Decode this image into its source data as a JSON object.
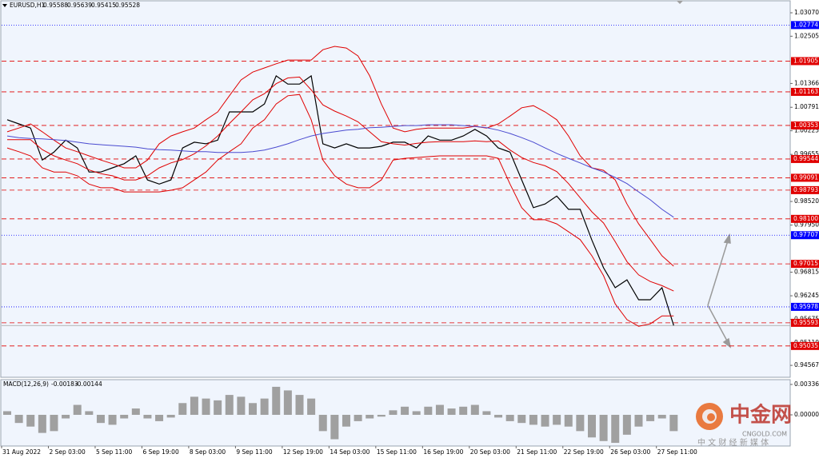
{
  "chart_data": [
    {
      "type": "line",
      "symbol": "EURUSD,H1",
      "ohlc": [
        0.95588,
        0.95639,
        0.95415,
        0.95528
      ],
      "categories": [
        "31 Aug 2022",
        null,
        null,
        null,
        "2 Sep 03:00",
        null,
        null,
        null,
        "5 Sep 11:00",
        null,
        null,
        null,
        "6 Sep 19:00",
        null,
        null,
        null,
        "8 Sep 03:00",
        null,
        null,
        null,
        "9 Sep 11:00",
        null,
        null,
        null,
        "12 Sep 19:00",
        null,
        null,
        null,
        "14 Sep 03:00",
        null,
        null,
        null,
        "15 Sep 11:00",
        null,
        null,
        null,
        "16 Sep 19:00",
        null,
        null,
        null,
        "20 Sep 03:00",
        null,
        null,
        null,
        "21 Sep 11:00",
        null,
        null,
        null,
        "22 Sep 19:00",
        null,
        null,
        null,
        "26 Sep 03:00",
        null,
        null,
        null,
        "27 Sep 11:00",
        null
      ],
      "series": [
        {
          "color": "#000000",
          "values": [
            1.0049,
            1.0039,
            1.0029,
            0.9952,
            0.9971,
            1.0,
            0.9981,
            0.9923,
            0.9923,
            0.9933,
            0.9943,
            0.9962,
            0.9904,
            0.9894,
            0.9904,
            0.9981,
            0.9995,
            0.9991,
            1.0,
            1.0068,
            1.0068,
            1.0068,
            1.0087,
            1.0155,
            1.0135,
            1.0135,
            1.0155,
            0.9991,
            0.9981,
            0.9991,
            0.9981,
            0.9981,
            0.9985,
            0.9995,
            0.9995,
            0.9981,
            1.001,
            1.0,
            1.0,
            1.001,
            1.0026,
            1.001,
            0.9981,
            0.9971,
            0.9904,
            0.9837,
            0.9846,
            0.9865,
            0.9833,
            0.9833,
            0.9759,
            0.9692,
            0.9644,
            0.9663,
            0.9615,
            0.9615,
            0.9644,
            0.9553
          ]
        },
        {
          "color": "#e00000",
          "values": [
            1.002,
            1.0029,
            1.0039,
            1.002,
            1.0,
            0.9981,
            0.9972,
            0.9962,
            0.9952,
            0.9943,
            0.9933,
            0.9933,
            0.9952,
            0.9991,
            1.001,
            1.002,
            1.0029,
            1.0049,
            1.0068,
            1.0107,
            1.0145,
            1.0164,
            1.0174,
            1.0184,
            1.0193,
            1.0193,
            1.0193,
            1.0218,
            1.0226,
            1.0222,
            1.0203,
            1.0155,
            1.0087,
            1.0029,
            1.002,
            1.0026,
            1.0029,
            1.0029,
            1.0029,
            1.0029,
            1.0033,
            1.0029,
            1.0039,
            1.0058,
            1.0078,
            1.0083,
            1.0068,
            1.0049,
            1.001,
            0.9962,
            0.9933,
            0.9927,
            0.9904,
            0.9846,
            0.9798,
            0.976,
            0.9721,
            0.9696
          ]
        },
        {
          "color": "#e00000",
          "values": [
            1.0001,
            1.0001,
            1.0001,
            0.9977,
            0.9962,
            0.9952,
            0.9943,
            0.9928,
            0.9919,
            0.9914,
            0.9904,
            0.9904,
            0.9914,
            0.9933,
            0.9945,
            0.9953,
            0.9967,
            0.9986,
            1.001,
            1.004,
            1.0068,
            1.0097,
            1.0112,
            1.0136,
            1.015,
            1.0152,
            1.0121,
            1.0085,
            1.007,
            1.0058,
            1.0044,
            1.002,
            0.9996,
            0.9991,
            0.9988,
            0.9992,
            0.9995,
            0.9996,
            0.9996,
            0.9996,
            0.9998,
            0.9996,
            0.9998,
            0.9976,
            0.9958,
            0.9946,
            0.9938,
            0.9924,
            0.9895,
            0.9861,
            0.9827,
            0.98,
            0.9755,
            0.9707,
            0.9675,
            0.9659,
            0.9649,
            0.9636
          ]
        },
        {
          "color": "#e00000",
          "values": [
            0.9981,
            0.9972,
            0.9962,
            0.9933,
            0.9923,
            0.9923,
            0.9914,
            0.9894,
            0.9885,
            0.9885,
            0.9875,
            0.9875,
            0.9875,
            0.9875,
            0.9879,
            0.9885,
            0.9904,
            0.9923,
            0.9952,
            0.9972,
            0.9991,
            1.0029,
            1.0049,
            1.0087,
            1.0107,
            1.011,
            1.0049,
            0.9952,
            0.9914,
            0.9894,
            0.9885,
            0.9885,
            0.9904,
            0.9952,
            0.9956,
            0.9958,
            0.996,
            0.9962,
            0.9962,
            0.9962,
            0.9962,
            0.9962,
            0.9956,
            0.9894,
            0.9837,
            0.9808,
            0.9808,
            0.9798,
            0.9779,
            0.976,
            0.9721,
            0.9673,
            0.9605,
            0.9567,
            0.9551,
            0.9557,
            0.9576,
            0.9576
          ]
        },
        {
          "color": "#4a4ad0",
          "values": [
            1.001,
            1.0006,
            1.0004,
            1.0003,
            1.0001,
            0.9999,
            0.9995,
            0.9991,
            0.9989,
            0.9987,
            0.9985,
            0.9983,
            0.9979,
            0.9977,
            0.9976,
            0.9974,
            0.9972,
            0.9972,
            0.997,
            0.997,
            0.997,
            0.9972,
            0.9976,
            0.9983,
            0.9991,
            1.0001,
            1.001,
            1.0016,
            1.002,
            1.0024,
            1.0026,
            1.003,
            1.0031,
            1.0033,
            1.0035,
            1.0035,
            1.0037,
            1.0037,
            1.0037,
            1.0035,
            1.0033,
            1.003,
            1.0024,
            1.0016,
            1.0006,
            0.9995,
            0.9981,
            0.9968,
            0.9956,
            0.9945,
            0.9933,
            0.9923,
            0.991,
            0.9895,
            0.9875,
            0.9856,
            0.9833,
            0.9814
          ]
        }
      ],
      "levels": [
        {
          "value": 1.02774,
          "color": "#0000ff",
          "style": "dotted"
        },
        {
          "value": 1.01905,
          "color": "#e00000",
          "style": "dashed"
        },
        {
          "value": 1.01163,
          "color": "#e00000",
          "style": "dashed"
        },
        {
          "value": 1.00353,
          "color": "#e00000",
          "style": "dashed"
        },
        {
          "value": 0.99544,
          "color": "#e00000",
          "style": "dashed"
        },
        {
          "value": 0.99091,
          "color": "#e00000",
          "style": "dashed"
        },
        {
          "value": 0.98793,
          "color": "#e00000",
          "style": "dashed"
        },
        {
          "value": 0.981,
          "label": "0.98100",
          "color": "#e00000",
          "style": "dashed"
        },
        {
          "value": 0.97707,
          "color": "#0000ff",
          "style": "dotted"
        },
        {
          "value": 0.97015,
          "color": "#e00000",
          "style": "dashed"
        },
        {
          "value": 0.95978,
          "color": "#0000ff",
          "style": "dotted"
        },
        {
          "value": 0.95593,
          "color": "#e00000",
          "style": "dashed"
        },
        {
          "value": 0.95035,
          "color": "#e00000",
          "style": "dashed"
        }
      ],
      "ylim": [
        0.9428,
        1.0334
      ],
      "yticks": [
        {
          "value": 1.0307,
          "label": "1.03070"
        },
        1.02505,
        1.01366,
        1.00791,
        1.00225,
        0.99655,
        {
          "value": 0.9852,
          "label": "0.98520"
        },
        {
          "value": 0.9795,
          "label": "0.97950"
        },
        0.96815,
        0.96245,
        0.95675,
        {
          "value": 0.9511,
          "label": "0.95110"
        },
        0.94567
      ]
    },
    {
      "type": "bar",
      "title": "MACD(12,26,9)",
      "macd": -0.00183,
      "signal": -0.00144,
      "color": "#a0a0a0",
      "values": [
        0.0004,
        -0.0009,
        -0.0013,
        -0.002,
        -0.0018,
        -0.0004,
        0.0011,
        0.0004,
        -0.0009,
        -0.0011,
        -0.0004,
        0.0007,
        -0.0004,
        -0.0007,
        -0.0003,
        0.0013,
        0.002,
        0.0018,
        0.0016,
        0.0022,
        0.002,
        0.0013,
        0.0018,
        0.0031,
        0.0027,
        0.0022,
        0.0018,
        -0.0018,
        -0.0027,
        -0.0013,
        -0.0007,
        -0.0004,
        -0.0002,
        0.0005,
        0.0009,
        0.0004,
        0.0009,
        0.0011,
        0.0007,
        0.0009,
        0.0011,
        0.0004,
        -0.0003,
        -0.0007,
        -0.0009,
        -0.0011,
        -0.0013,
        -0.0011,
        -0.0013,
        -0.0018,
        -0.0025,
        -0.0029,
        -0.0031,
        -0.0022,
        -0.0013,
        -0.0007,
        -0.0004,
        -0.0018
      ],
      "ylim": [
        -0.00336,
        0.0038
      ],
      "yticks": [
        0.00336,
        {
          "value": 0,
          "label": "0.00000"
        }
      ]
    }
  ],
  "watermark": {
    "brand": "中金网",
    "site": "CNGOLD.COM",
    "slogan": "中 文 财 经 新 媒 体"
  }
}
